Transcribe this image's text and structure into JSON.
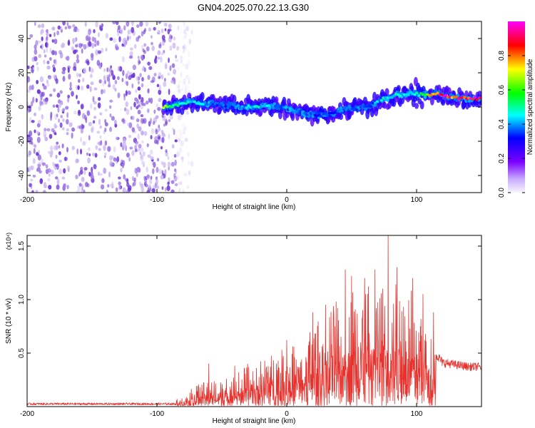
{
  "title": "GN04.2025.070.22.13.G30",
  "colors": {
    "snr_line": "#e8322d",
    "spectrogram_scatter": "#6b33d6",
    "axis": "#000000"
  },
  "chart_data": [
    {
      "type": "heatmap",
      "panel": "spectrogram",
      "xlabel": "Height of straight line (km)",
      "ylabel": "Frequency (Hz)",
      "xlim": [
        -200,
        150
      ],
      "ylim": [
        -50,
        50
      ],
      "x_ticks": [
        -200,
        -100,
        0,
        100
      ],
      "y_ticks": [
        -40,
        -20,
        0,
        20,
        40
      ],
      "colorbar": {
        "label": "Normalized spectral amplitude",
        "range": [
          0,
          1
        ],
        "ticks": [
          "0.0",
          "0.2",
          "0.4",
          "0.6",
          "0.8"
        ],
        "colormap": [
          "#f8f6fc",
          "#7a00ff",
          "#0000ff",
          "#00ffff",
          "#00ff00",
          "#ffff00",
          "#ff0000",
          "#ff00ff"
        ]
      },
      "noise_region_x": [
        -200,
        -85
      ],
      "ridge": {
        "x": [
          -95,
          -85,
          -75,
          -65,
          -55,
          -45,
          -35,
          -25,
          -15,
          -5,
          5,
          15,
          25,
          35,
          45,
          55,
          65,
          75,
          85,
          95,
          105,
          115,
          125,
          135,
          150
        ],
        "frequency": [
          0,
          1,
          3,
          2,
          2,
          1,
          0,
          0,
          1,
          0,
          -2,
          -4,
          -5,
          -4,
          -1,
          -1,
          1,
          5,
          7,
          8,
          7,
          8,
          6,
          5,
          5
        ],
        "amplitude": [
          0.6,
          0.45,
          0.45,
          0.4,
          0.35,
          0.3,
          0.35,
          0.45,
          0.4,
          0.35,
          0.35,
          0.35,
          0.3,
          0.3,
          0.35,
          0.35,
          0.3,
          0.45,
          0.45,
          0.4,
          0.55,
          0.9,
          0.85,
          0.9,
          0.95
        ]
      }
    },
    {
      "type": "line",
      "panel": "snr",
      "xlabel": "Height of straight line (km)",
      "ylabel": "SNR (10 * v/v)",
      "y_multiplier": "(x10⁴)",
      "xlim": [
        -200,
        150
      ],
      "ylim": [
        0,
        1.6
      ],
      "x_ticks": [
        -200,
        -100,
        0,
        100
      ],
      "y_ticks": [
        0.5,
        1.0,
        1.5
      ],
      "y_tick_labels": [
        "0.5",
        "1.0",
        "1.5"
      ],
      "series": [
        {
          "envelope_x": [
            -200,
            -150,
            -100,
            -90,
            -80,
            -70,
            -60,
            -50,
            -40,
            -30,
            -20,
            -10,
            0,
            10,
            20,
            30,
            40,
            50,
            60,
            70,
            80,
            90,
            100,
            110,
            115,
            120,
            130,
            140,
            150
          ],
          "envelope_y": [
            0.02,
            0.02,
            0.03,
            0.04,
            0.1,
            0.2,
            0.25,
            0.28,
            0.3,
            0.4,
            0.45,
            0.5,
            0.55,
            0.6,
            0.75,
            0.9,
            1.0,
            1.15,
            1.1,
            1.2,
            1.3,
            1.15,
            1.05,
            0.85,
            0.5,
            0.42,
            0.4,
            0.38,
            0.38
          ],
          "peaks": [
            [
              -60,
              0.4
            ],
            [
              -40,
              0.38
            ],
            [
              -20,
              0.42
            ],
            [
              0,
              0.62
            ],
            [
              20,
              0.88
            ],
            [
              30,
              0.95
            ],
            [
              38,
              0.98
            ],
            [
              45,
              1.28
            ],
            [
              50,
              1.22
            ],
            [
              60,
              1.2
            ],
            [
              68,
              1.28
            ],
            [
              78,
              1.64
            ],
            [
              85,
              1.3
            ],
            [
              97,
              1.2
            ],
            [
              105,
              1.05
            ],
            [
              113,
              0.88
            ]
          ]
        }
      ]
    }
  ]
}
